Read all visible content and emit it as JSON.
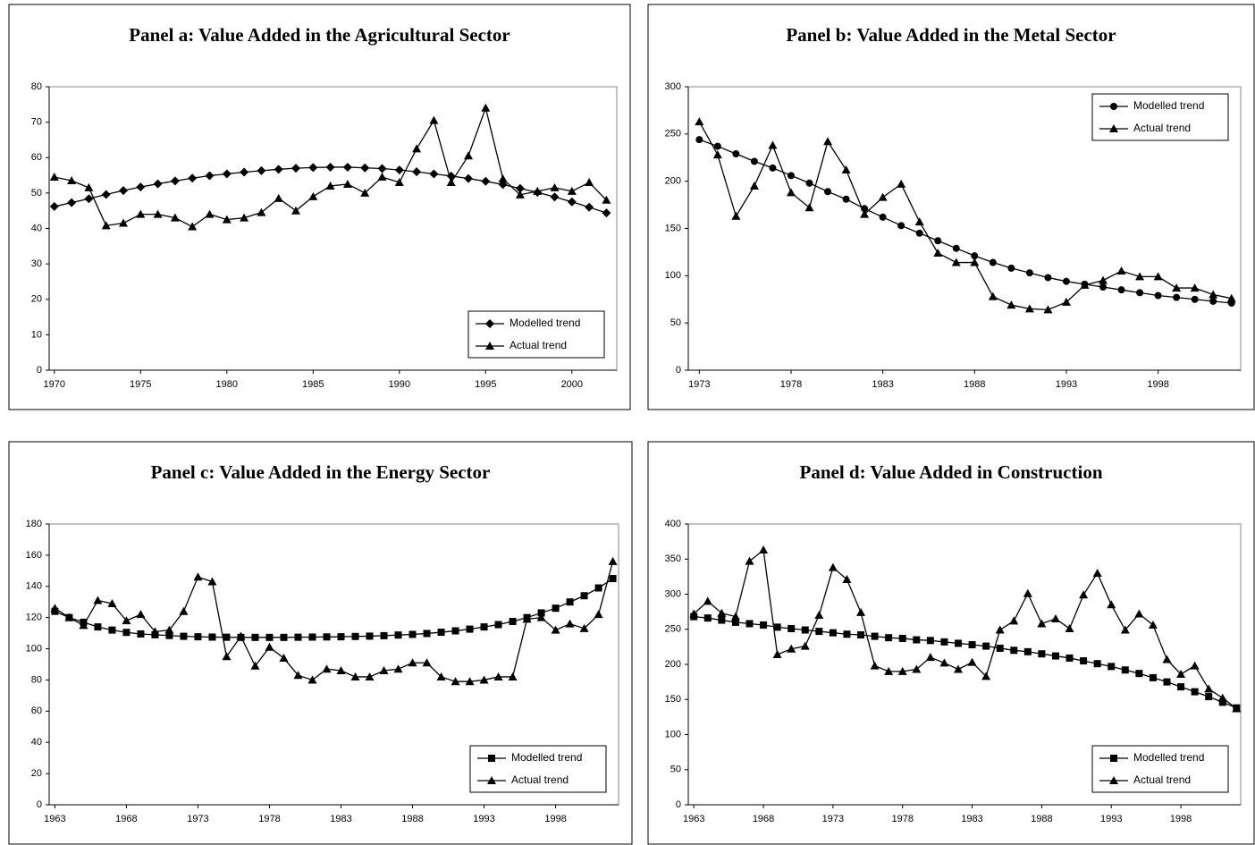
{
  "chart_data": [
    {
      "type": "line",
      "title": "Panel a: Value Added in the Agricultural Sector",
      "x": [
        1970,
        1971,
        1972,
        1973,
        1974,
        1975,
        1976,
        1977,
        1978,
        1979,
        1980,
        1981,
        1982,
        1983,
        1984,
        1985,
        1986,
        1987,
        1988,
        1989,
        1990,
        1991,
        1992,
        1993,
        1994,
        1995,
        1996,
        1997,
        1998,
        1999,
        2000,
        2001,
        2002
      ],
      "xlim": [
        1969.7,
        2002.6
      ],
      "xticks": [
        1970,
        1975,
        1980,
        1985,
        1990,
        1995,
        2000
      ],
      "ylim": [
        0,
        80
      ],
      "yticks": [
        0,
        10,
        20,
        30,
        40,
        50,
        60,
        70,
        80
      ],
      "legend": "bottom-right",
      "series": [
        {
          "name": "Modelled trend",
          "color": "#000000",
          "marker": "diamond",
          "values": [
            46.2,
            47.3,
            48.4,
            49.6,
            50.7,
            51.7,
            52.6,
            53.4,
            54.2,
            54.9,
            55.4,
            55.9,
            56.3,
            56.7,
            57.0,
            57.2,
            57.3,
            57.3,
            57.1,
            56.9,
            56.5,
            56.0,
            55.4,
            54.8,
            54.1,
            53.3,
            52.4,
            51.3,
            50.2,
            48.9,
            47.5,
            46.0,
            44.4
          ]
        },
        {
          "name": "Actual trend",
          "color": "#000000",
          "marker": "triangle",
          "values": [
            54.5,
            53.5,
            51.5,
            40.8,
            41.5,
            44,
            44,
            43,
            40.5,
            44,
            42.5,
            43,
            44.5,
            48.5,
            45,
            49,
            52,
            52.5,
            50,
            54.5,
            53,
            62.5,
            70.5,
            53,
            60.5,
            74,
            54,
            49.5,
            50.5,
            51.5,
            50.5,
            53,
            48
          ]
        }
      ]
    },
    {
      "type": "line",
      "title": "Panel b: Value Added in the Metal Sector",
      "x": [
        1973,
        1974,
        1975,
        1976,
        1977,
        1978,
        1979,
        1980,
        1981,
        1982,
        1983,
        1984,
        1985,
        1986,
        1987,
        1988,
        1989,
        1990,
        1991,
        1992,
        1993,
        1994,
        1995,
        1996,
        1997,
        1998,
        1999,
        2000,
        2001,
        2002
      ],
      "xlim": [
        1972.4,
        2002.5
      ],
      "xticks": [
        1973,
        1978,
        1983,
        1988,
        1993,
        1998
      ],
      "ylim": [
        0,
        300
      ],
      "yticks": [
        0,
        50,
        100,
        150,
        200,
        250,
        300
      ],
      "legend": "top-right",
      "series": [
        {
          "name": "Modelled trend",
          "color": "#000000",
          "marker": "circle",
          "values": [
            244,
            237,
            229,
            221,
            214,
            206,
            198,
            189,
            181,
            171,
            162,
            153,
            145,
            137,
            129,
            121,
            114,
            108,
            103,
            98,
            94,
            91,
            88,
            85,
            82,
            79,
            77,
            75,
            73,
            71
          ]
        },
        {
          "name": "Actual trend",
          "color": "#000000",
          "marker": "triangle",
          "values": [
            263,
            228,
            163,
            195,
            238,
            188,
            172,
            242,
            212,
            165,
            183,
            197,
            157,
            124,
            114,
            114,
            78,
            69,
            65,
            64,
            72,
            90,
            95,
            105,
            99,
            99,
            87,
            87,
            80,
            76
          ]
        }
      ]
    },
    {
      "type": "line",
      "title": "Panel c: Value Added in the Energy Sector",
      "x": [
        1963,
        1964,
        1965,
        1966,
        1967,
        1968,
        1969,
        1970,
        1971,
        1972,
        1973,
        1974,
        1975,
        1976,
        1977,
        1978,
        1979,
        1980,
        1981,
        1982,
        1983,
        1984,
        1985,
        1986,
        1987,
        1988,
        1989,
        1990,
        1991,
        1992,
        1993,
        1994,
        1995,
        1996,
        1997,
        1998,
        1999,
        2000,
        2001,
        2002
      ],
      "xlim": [
        1962.6,
        2002.4
      ],
      "xticks": [
        1963,
        1968,
        1973,
        1978,
        1983,
        1988,
        1993,
        1998
      ],
      "ylim": [
        0,
        180
      ],
      "yticks": [
        0,
        20,
        40,
        60,
        80,
        100,
        120,
        140,
        160,
        180
      ],
      "legend": "bottom-right",
      "series": [
        {
          "name": "Modelled trend",
          "color": "#000000",
          "marker": "square",
          "values": [
            124,
            120,
            117,
            114,
            112,
            110.5,
            109.5,
            109,
            108.5,
            108,
            107.7,
            107.5,
            107.4,
            107.3,
            107.3,
            107.3,
            107.3,
            107.4,
            107.5,
            107.6,
            107.7,
            107.9,
            108.1,
            108.4,
            108.8,
            109.2,
            109.8,
            110.6,
            111.5,
            112.6,
            114,
            115.5,
            117.5,
            120,
            123,
            126,
            130,
            134,
            139,
            145
          ]
        },
        {
          "name": "Actual trend",
          "color": "#000000",
          "marker": "triangle",
          "values": [
            126,
            120,
            115,
            131,
            129,
            118,
            122,
            111,
            112,
            124,
            146,
            143,
            95,
            108,
            89,
            101,
            94,
            83,
            80,
            87,
            86,
            82,
            82,
            86,
            87,
            91,
            91,
            82,
            79,
            79,
            80,
            82,
            82,
            119,
            120,
            112,
            116,
            113,
            122,
            156
          ]
        }
      ]
    },
    {
      "type": "line",
      "title": "Panel d: Value Added in Construction",
      "x": [
        1963,
        1964,
        1965,
        1966,
        1967,
        1968,
        1969,
        1970,
        1971,
        1972,
        1973,
        1974,
        1975,
        1976,
        1977,
        1978,
        1979,
        1980,
        1981,
        1982,
        1983,
        1984,
        1985,
        1986,
        1987,
        1988,
        1989,
        1990,
        1991,
        1992,
        1993,
        1994,
        1995,
        1996,
        1997,
        1998,
        1999,
        2000,
        2001,
        2002
      ],
      "xlim": [
        1962.6,
        2002.3
      ],
      "xticks": [
        1963,
        1968,
        1973,
        1978,
        1983,
        1988,
        1993,
        1998
      ],
      "ylim": [
        0,
        400
      ],
      "yticks": [
        0,
        50,
        100,
        150,
        200,
        250,
        300,
        350,
        400
      ],
      "legend": "bottom-right",
      "series": [
        {
          "name": "Modelled trend",
          "color": "#000000",
          "marker": "square",
          "values": [
            268,
            266,
            263,
            260,
            258,
            256,
            253,
            251,
            249,
            247,
            245,
            243,
            242,
            240,
            238,
            237,
            235,
            234,
            232,
            230,
            228,
            226,
            223,
            220,
            218,
            215,
            212,
            209,
            205,
            201,
            197,
            192,
            187,
            181,
            175,
            168,
            161,
            154,
            146,
            138
          ]
        },
        {
          "name": "Actual trend",
          "color": "#000000",
          "marker": "triangle",
          "values": [
            272,
            290,
            273,
            268,
            347,
            363,
            214,
            222,
            226,
            270,
            338,
            321,
            274,
            198,
            190,
            190,
            193,
            210,
            202,
            193,
            203,
            183,
            249,
            262,
            301,
            258,
            265,
            251,
            299,
            330,
            285,
            249,
            272,
            256,
            207,
            186,
            198,
            165,
            152,
            137
          ]
        }
      ]
    }
  ]
}
